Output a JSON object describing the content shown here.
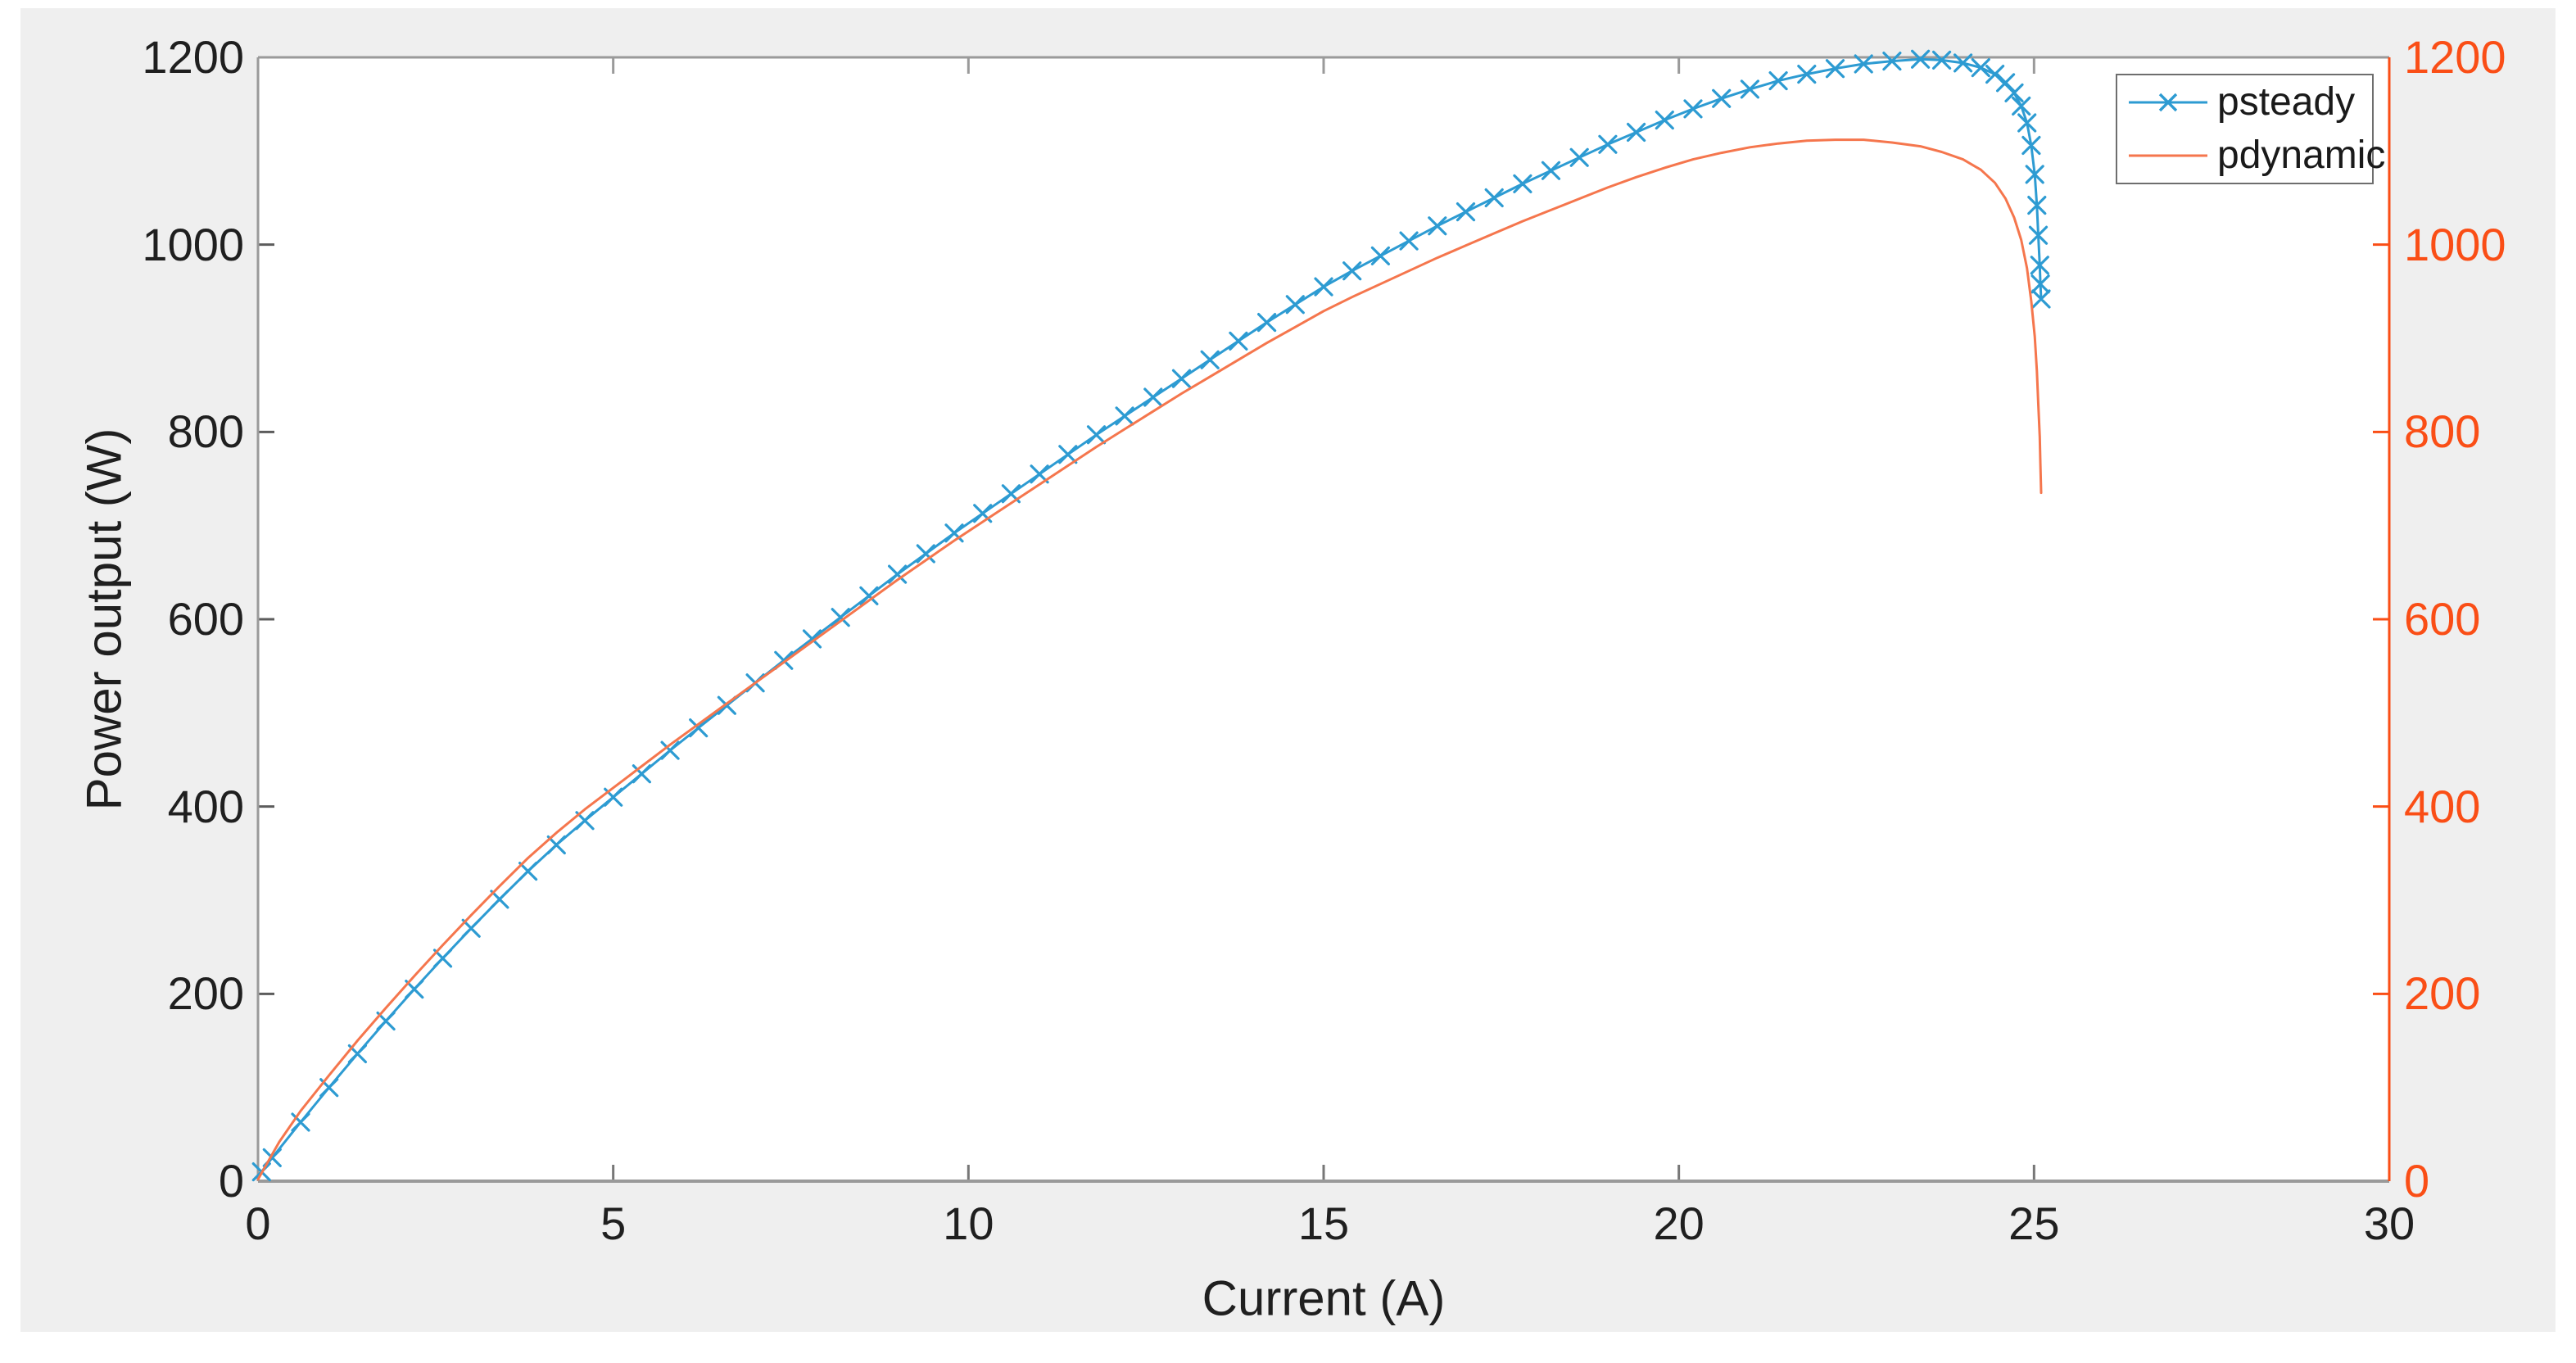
{
  "figure": {
    "panel_color": "#efefef",
    "plot_background": "#ffffff",
    "box_color": "#9a9a9a",
    "tick_color": "#777777"
  },
  "labels": {
    "xlabel": "Current (A)",
    "ylabel": "Power output (W)"
  },
  "chart_data": {
    "type": "line",
    "title": "",
    "xlabel": "Current (A)",
    "ylabel": "Power output (W)",
    "xlim": [
      0,
      30
    ],
    "ylim_left": [
      0,
      1200
    ],
    "ylim_right": [
      0,
      1200
    ],
    "xticks": [
      0,
      5,
      10,
      15,
      20,
      25,
      30
    ],
    "yticks_left": [
      0,
      200,
      400,
      600,
      800,
      1000,
      1200
    ],
    "yticks_right": [
      0,
      200,
      400,
      600,
      800,
      1000,
      1200
    ],
    "grid": false,
    "legend_position": "top-right",
    "axis_colors": {
      "left": "#1f1f1f",
      "right": "#fa4e16",
      "box": "#9a9a9a"
    },
    "legend": {
      "entries": [
        {
          "label": "psteady",
          "color": "#2d9bd2",
          "marker": "x"
        },
        {
          "label": "pdynamic",
          "color": "#f5764d",
          "marker": "none"
        }
      ]
    },
    "series": [
      {
        "name": "psteady",
        "color": "#2d9bd2",
        "marker": "x",
        "axis": "left",
        "points": [
          [
            0.05,
            10
          ],
          [
            0.2,
            25
          ],
          [
            0.6,
            63
          ],
          [
            1.0,
            100
          ],
          [
            1.4,
            136
          ],
          [
            1.8,
            171
          ],
          [
            2.2,
            205
          ],
          [
            2.6,
            238
          ],
          [
            3.0,
            270
          ],
          [
            3.4,
            301
          ],
          [
            3.8,
            331
          ],
          [
            4.2,
            359
          ],
          [
            4.6,
            385
          ],
          [
            5.0,
            410
          ],
          [
            5.4,
            435
          ],
          [
            5.8,
            460
          ],
          [
            6.2,
            484
          ],
          [
            6.6,
            508
          ],
          [
            7.0,
            532
          ],
          [
            7.4,
            556
          ],
          [
            7.8,
            579
          ],
          [
            8.2,
            602
          ],
          [
            8.6,
            625
          ],
          [
            9.0,
            648
          ],
          [
            9.4,
            670
          ],
          [
            9.8,
            692
          ],
          [
            10.2,
            713
          ],
          [
            10.6,
            734
          ],
          [
            11.0,
            755
          ],
          [
            11.4,
            776
          ],
          [
            11.8,
            797
          ],
          [
            12.2,
            817
          ],
          [
            12.6,
            837
          ],
          [
            13.0,
            857
          ],
          [
            13.4,
            877
          ],
          [
            13.8,
            897
          ],
          [
            14.2,
            917
          ],
          [
            14.6,
            936
          ],
          [
            15.0,
            955
          ],
          [
            15.4,
            972
          ],
          [
            15.8,
            988
          ],
          [
            16.2,
            1004
          ],
          [
            16.6,
            1020
          ],
          [
            17.0,
            1035
          ],
          [
            17.4,
            1050
          ],
          [
            17.8,
            1065
          ],
          [
            18.2,
            1079
          ],
          [
            18.6,
            1093
          ],
          [
            19.0,
            1107
          ],
          [
            19.4,
            1120
          ],
          [
            19.8,
            1133
          ],
          [
            20.2,
            1145
          ],
          [
            20.6,
            1156
          ],
          [
            21.0,
            1166
          ],
          [
            21.4,
            1175
          ],
          [
            21.8,
            1182
          ],
          [
            22.2,
            1188
          ],
          [
            22.6,
            1193
          ],
          [
            23.0,
            1196
          ],
          [
            23.4,
            1198
          ],
          [
            23.7,
            1197
          ],
          [
            24.0,
            1194
          ],
          [
            24.25,
            1189
          ],
          [
            24.45,
            1182
          ],
          [
            24.6,
            1173
          ],
          [
            24.72,
            1162
          ],
          [
            24.82,
            1148
          ],
          [
            24.9,
            1130
          ],
          [
            24.96,
            1106
          ],
          [
            25.01,
            1075
          ],
          [
            25.04,
            1042
          ],
          [
            25.06,
            1010
          ],
          [
            25.08,
            978
          ],
          [
            25.09,
            958
          ],
          [
            25.1,
            942
          ]
        ]
      },
      {
        "name": "pdynamic",
        "color": "#f5764d",
        "marker": "none",
        "axis": "right",
        "points": [
          [
            0,
            2
          ],
          [
            0.3,
            42
          ],
          [
            0.6,
            75
          ],
          [
            1.0,
            113
          ],
          [
            1.4,
            150
          ],
          [
            1.8,
            185
          ],
          [
            2.2,
            219
          ],
          [
            2.6,
            252
          ],
          [
            3.0,
            284
          ],
          [
            3.4,
            315
          ],
          [
            3.8,
            345
          ],
          [
            4.2,
            372
          ],
          [
            4.6,
            397
          ],
          [
            5.0,
            420
          ],
          [
            5.4,
            443
          ],
          [
            5.8,
            466
          ],
          [
            6.2,
            488
          ],
          [
            6.6,
            510
          ],
          [
            7.0,
            532
          ],
          [
            7.4,
            554
          ],
          [
            7.8,
            576
          ],
          [
            8.2,
            598
          ],
          [
            8.6,
            620
          ],
          [
            9.0,
            642
          ],
          [
            9.4,
            663
          ],
          [
            9.8,
            684
          ],
          [
            10.2,
            704
          ],
          [
            10.6,
            724
          ],
          [
            11.0,
            744
          ],
          [
            11.4,
            764
          ],
          [
            11.8,
            784
          ],
          [
            12.2,
            803
          ],
          [
            12.6,
            822
          ],
          [
            13.0,
            841
          ],
          [
            13.4,
            859
          ],
          [
            13.8,
            877
          ],
          [
            14.2,
            895
          ],
          [
            14.6,
            912
          ],
          [
            15.0,
            929
          ],
          [
            15.4,
            944
          ],
          [
            15.8,
            958
          ],
          [
            16.2,
            972
          ],
          [
            16.6,
            986
          ],
          [
            17.0,
            999
          ],
          [
            17.4,
            1012
          ],
          [
            17.8,
            1025
          ],
          [
            18.2,
            1037
          ],
          [
            18.6,
            1049
          ],
          [
            19.0,
            1061
          ],
          [
            19.4,
            1072
          ],
          [
            19.8,
            1082
          ],
          [
            20.2,
            1091
          ],
          [
            20.6,
            1098
          ],
          [
            21.0,
            1104
          ],
          [
            21.4,
            1108
          ],
          [
            21.8,
            1111
          ],
          [
            22.2,
            1112
          ],
          [
            22.6,
            1112
          ],
          [
            23.0,
            1109
          ],
          [
            23.4,
            1105
          ],
          [
            23.7,
            1099
          ],
          [
            24.0,
            1091
          ],
          [
            24.25,
            1080
          ],
          [
            24.45,
            1066
          ],
          [
            24.6,
            1049
          ],
          [
            24.72,
            1029
          ],
          [
            24.82,
            1005
          ],
          [
            24.9,
            975
          ],
          [
            24.96,
            940
          ],
          [
            25.01,
            902
          ],
          [
            25.04,
            865
          ],
          [
            25.06,
            830
          ],
          [
            25.08,
            795
          ],
          [
            25.09,
            765
          ],
          [
            25.1,
            735
          ]
        ]
      }
    ]
  }
}
